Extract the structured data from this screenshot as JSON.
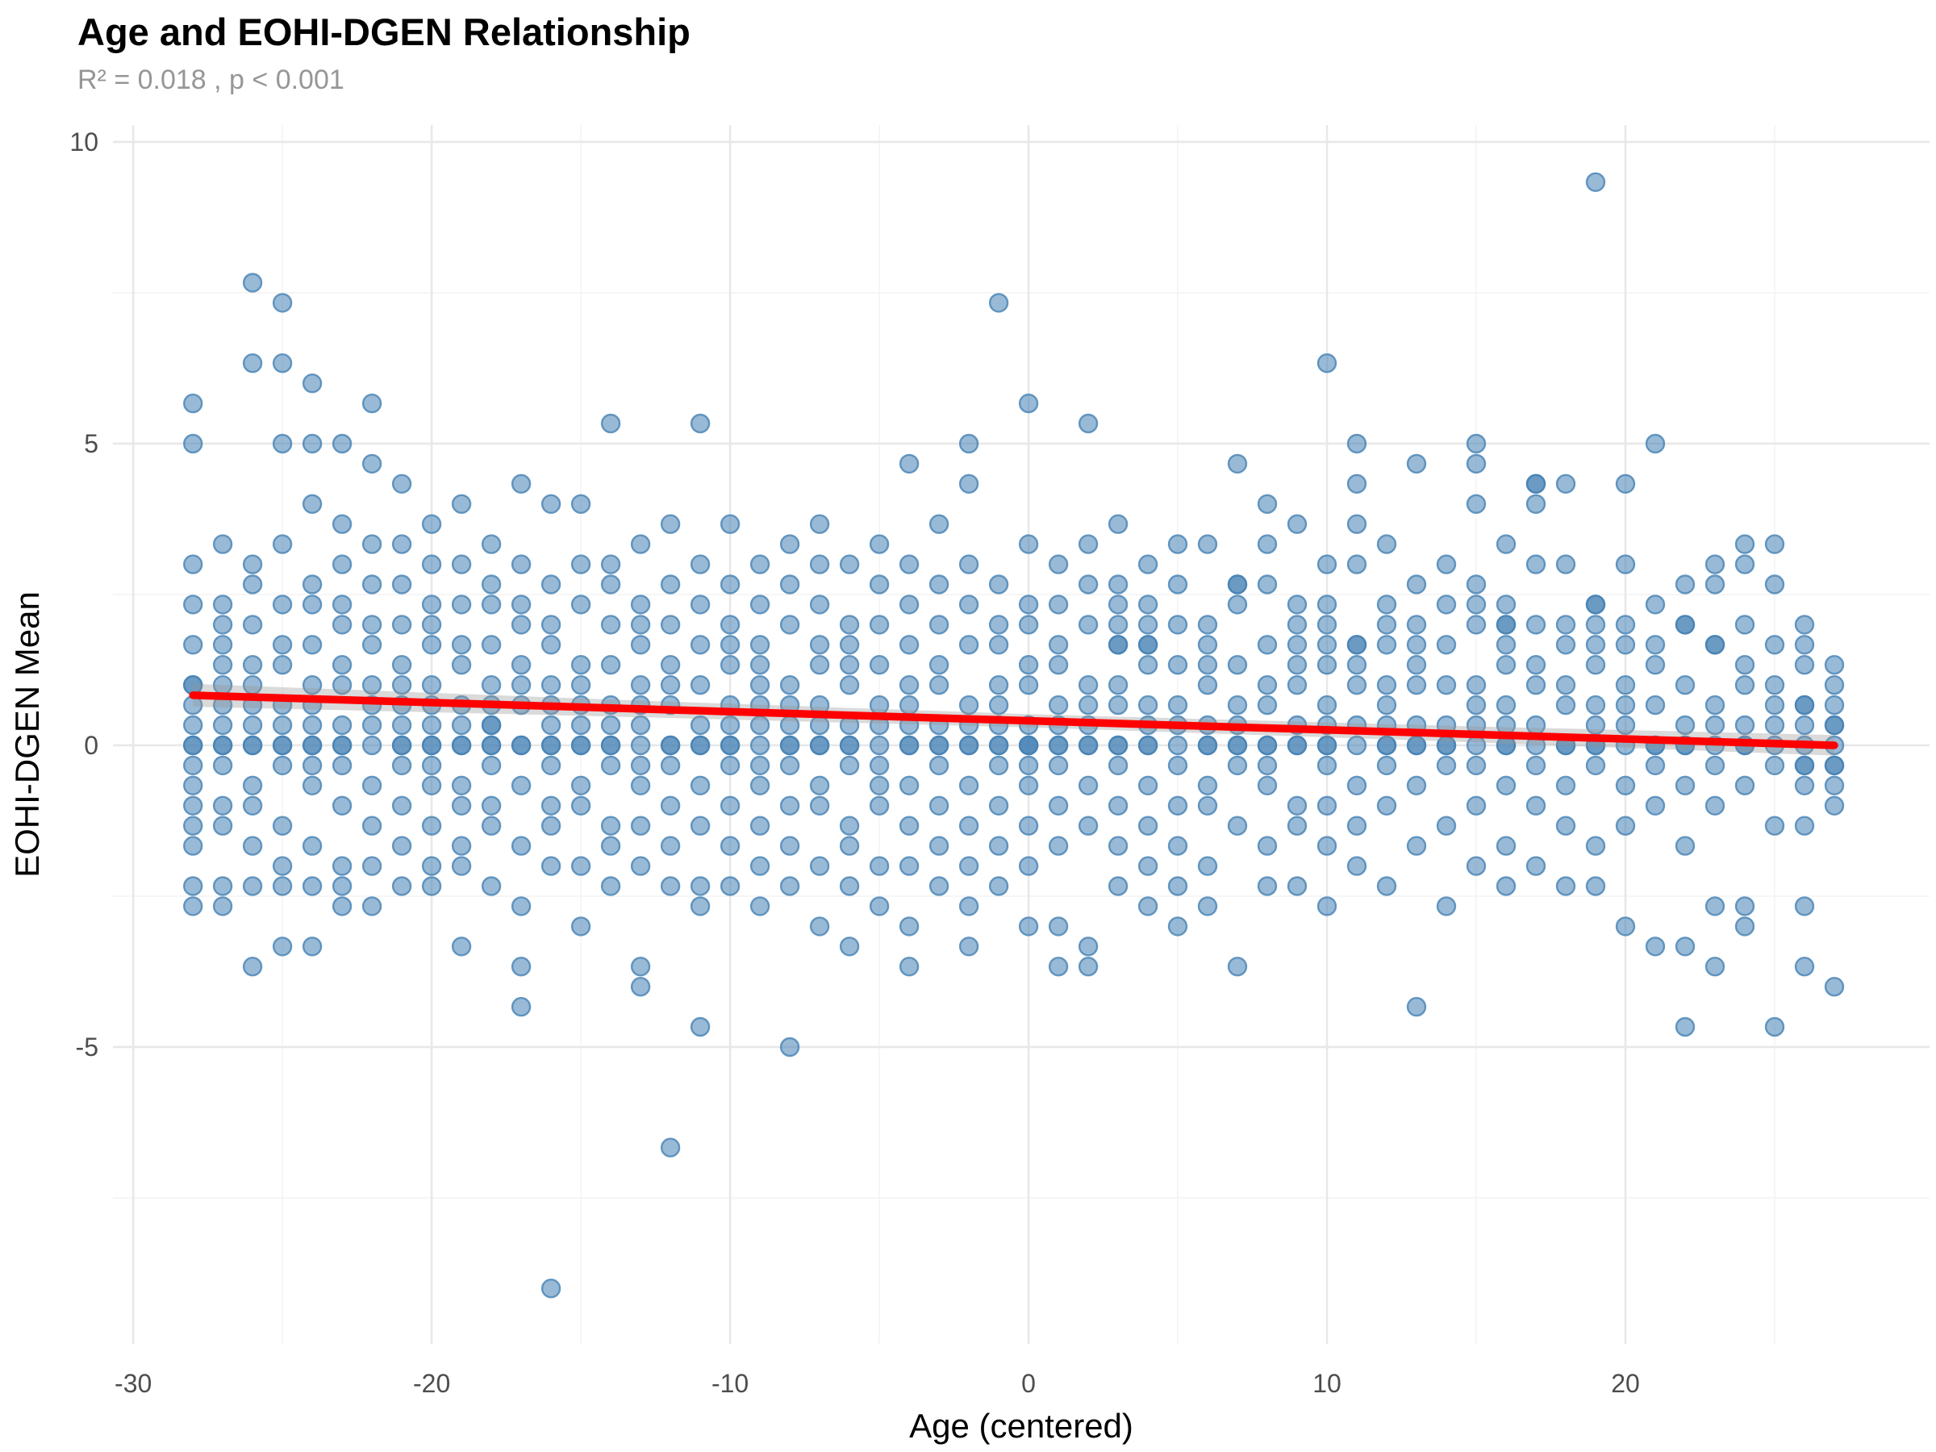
{
  "page": {
    "title": "Age and EOHI-DGEN Relationship",
    "subtitle": "R² = 0.018 , p < 0.001"
  },
  "chart_data": {
    "type": "scatter",
    "title": "Age and EOHI-DGEN Relationship",
    "subtitle": "R² = 0.018 , p < 0.001",
    "xlabel": "Age (centered)",
    "ylabel": "EOHI-DGEN Mean",
    "x_ticks": [
      -30,
      -20,
      -10,
      0,
      10,
      20
    ],
    "x_minor_ticks": [
      -25,
      -15,
      -5,
      5,
      15,
      25
    ],
    "y_ticks": [
      -5,
      0,
      5,
      10
    ],
    "y_minor_ticks": [
      -7.5,
      -2.5,
      2.5,
      7.5
    ],
    "x_domain": [
      -30.68,
      30.19
    ],
    "y_domain": [
      -9.92,
      10.28
    ],
    "grid": true,
    "legend": "none",
    "point_y_resolution": 0.3333,
    "note_y3": "y values are thirds: y = y3 / 3; repeated y3 values = overlapping points (darker)",
    "columns": [
      {
        "x": -28,
        "y3": [
          17,
          15,
          9,
          7,
          5,
          3,
          3,
          2,
          1,
          0,
          0,
          -1,
          -2,
          -3,
          -4,
          -5,
          -7,
          -8
        ]
      },
      {
        "x": -27,
        "y3": [
          10,
          7,
          6,
          5,
          4,
          3,
          2,
          1,
          0,
          0,
          -1,
          -3,
          -4,
          -7,
          -8
        ]
      },
      {
        "x": -26,
        "y3": [
          23,
          19,
          9,
          8,
          6,
          4,
          3,
          2,
          1,
          0,
          0,
          -2,
          -3,
          -5,
          -7,
          -11
        ]
      },
      {
        "x": -25,
        "y3": [
          22,
          19,
          15,
          10,
          7,
          5,
          4,
          2,
          1,
          0,
          0,
          -1,
          -4,
          -6,
          -7,
          -10
        ]
      },
      {
        "x": -24,
        "y3": [
          18,
          15,
          12,
          8,
          7,
          5,
          3,
          2,
          1,
          0,
          0,
          -1,
          -2,
          -5,
          -7,
          -10
        ]
      },
      {
        "x": -23,
        "y3": [
          15,
          11,
          9,
          7,
          6,
          4,
          3,
          1,
          0,
          0,
          -1,
          -3,
          -6,
          -7,
          -8
        ]
      },
      {
        "x": -22,
        "y3": [
          17,
          14,
          10,
          8,
          6,
          5,
          3,
          2,
          1,
          0,
          -2,
          -4,
          -6,
          -8
        ]
      },
      {
        "x": -21,
        "y3": [
          13,
          10,
          8,
          6,
          4,
          3,
          2,
          1,
          0,
          0,
          -1,
          -3,
          -5,
          -7
        ]
      },
      {
        "x": -20,
        "y3": [
          11,
          9,
          7,
          6,
          5,
          3,
          2,
          1,
          0,
          0,
          -1,
          -2,
          -4,
          -6,
          -7
        ]
      },
      {
        "x": -19,
        "y3": [
          12,
          9,
          7,
          5,
          4,
          2,
          1,
          0,
          0,
          -2,
          -3,
          -5,
          -6,
          -10
        ]
      },
      {
        "x": -18,
        "y3": [
          10,
          8,
          7,
          5,
          3,
          2,
          1,
          1,
          0,
          0,
          -1,
          -3,
          -4,
          -7
        ]
      },
      {
        "x": -17,
        "y3": [
          13,
          9,
          7,
          6,
          4,
          3,
          2,
          0,
          0,
          -2,
          -5,
          -8,
          -11,
          -13
        ]
      },
      {
        "x": -16,
        "y3": [
          12,
          8,
          6,
          5,
          3,
          2,
          1,
          0,
          0,
          -1,
          -3,
          -4,
          -6,
          -27
        ]
      },
      {
        "x": -15,
        "y3": [
          12,
          9,
          7,
          4,
          3,
          2,
          1,
          0,
          0,
          -2,
          -3,
          -6,
          -9
        ]
      },
      {
        "x": -14,
        "y3": [
          16,
          9,
          8,
          6,
          4,
          2,
          1,
          0,
          0,
          -1,
          -4,
          -5,
          -7
        ]
      },
      {
        "x": -13,
        "y3": [
          10,
          7,
          6,
          5,
          3,
          2,
          1,
          0,
          -1,
          -2,
          -4,
          -6,
          -11,
          -12
        ]
      },
      {
        "x": -12,
        "y3": [
          11,
          8,
          6,
          4,
          3,
          2,
          0,
          0,
          -1,
          -3,
          -5,
          -7,
          -20
        ]
      },
      {
        "x": -11,
        "y3": [
          16,
          9,
          7,
          5,
          3,
          1,
          0,
          0,
          -2,
          -4,
          -7,
          -8,
          -14
        ]
      },
      {
        "x": -10,
        "y3": [
          11,
          8,
          6,
          5,
          4,
          2,
          1,
          0,
          0,
          -1,
          -3,
          -5,
          -7
        ]
      },
      {
        "x": -9,
        "y3": [
          9,
          7,
          5,
          4,
          3,
          2,
          1,
          0,
          -1,
          -2,
          -4,
          -6,
          -8
        ]
      },
      {
        "x": -8,
        "y3": [
          10,
          8,
          6,
          3,
          2,
          1,
          0,
          0,
          -1,
          -3,
          -5,
          -7,
          -15
        ]
      },
      {
        "x": -7,
        "y3": [
          11,
          9,
          7,
          5,
          4,
          2,
          1,
          0,
          0,
          -2,
          -3,
          -6,
          -9
        ]
      },
      {
        "x": -6,
        "y3": [
          9,
          6,
          5,
          4,
          3,
          1,
          0,
          0,
          -1,
          -4,
          -5,
          -7,
          -10
        ]
      },
      {
        "x": -5,
        "y3": [
          10,
          8,
          6,
          4,
          2,
          1,
          0,
          -1,
          -2,
          -3,
          -6,
          -8
        ]
      },
      {
        "x": -4,
        "y3": [
          14,
          9,
          7,
          5,
          3,
          2,
          1,
          0,
          0,
          -2,
          -4,
          -6,
          -9,
          -11
        ]
      },
      {
        "x": -3,
        "y3": [
          11,
          8,
          6,
          4,
          3,
          1,
          0,
          0,
          -1,
          -3,
          -5,
          -7
        ]
      },
      {
        "x": -2,
        "y3": [
          15,
          13,
          9,
          7,
          5,
          2,
          1,
          0,
          0,
          -2,
          -4,
          -6,
          -8,
          -10
        ]
      },
      {
        "x": -1,
        "y3": [
          22,
          8,
          6,
          5,
          3,
          2,
          1,
          0,
          0,
          -1,
          -3,
          -5,
          -7
        ]
      },
      {
        "x": 0,
        "y3": [
          17,
          10,
          7,
          6,
          4,
          3,
          1,
          0,
          0,
          0,
          -1,
          -2,
          -4,
          -6,
          -9
        ]
      },
      {
        "x": 1,
        "y3": [
          9,
          7,
          5,
          4,
          2,
          1,
          0,
          0,
          -1,
          -3,
          -5,
          -9,
          -11
        ]
      },
      {
        "x": 2,
        "y3": [
          16,
          10,
          8,
          6,
          3,
          2,
          1,
          0,
          0,
          -2,
          -4,
          -10,
          -11
        ]
      },
      {
        "x": 3,
        "y3": [
          11,
          8,
          7,
          6,
          5,
          5,
          3,
          2,
          0,
          0,
          -1,
          -3,
          -5,
          -7
        ]
      },
      {
        "x": 4,
        "y3": [
          9,
          7,
          6,
          5,
          5,
          4,
          2,
          1,
          0,
          0,
          -2,
          -4,
          -6,
          -8
        ]
      },
      {
        "x": 5,
        "y3": [
          10,
          8,
          6,
          4,
          2,
          1,
          0,
          -1,
          -3,
          -5,
          -7,
          -9
        ]
      },
      {
        "x": 6,
        "y3": [
          10,
          6,
          5,
          4,
          3,
          1,
          0,
          0,
          -2,
          -3,
          -6,
          -8
        ]
      },
      {
        "x": 7,
        "y3": [
          14,
          8,
          8,
          7,
          4,
          2,
          1,
          0,
          0,
          -1,
          -4,
          -11
        ]
      },
      {
        "x": 8,
        "y3": [
          12,
          10,
          8,
          5,
          3,
          2,
          0,
          0,
          -1,
          -2,
          -5,
          -7
        ]
      },
      {
        "x": 9,
        "y3": [
          11,
          7,
          6,
          5,
          4,
          3,
          1,
          0,
          0,
          -3,
          -4,
          -7
        ]
      },
      {
        "x": 10,
        "y3": [
          19,
          9,
          7,
          6,
          5,
          4,
          2,
          1,
          0,
          0,
          -1,
          -3,
          -5,
          -8
        ]
      },
      {
        "x": 11,
        "y3": [
          15,
          13,
          11,
          9,
          5,
          5,
          4,
          3,
          1,
          0,
          -2,
          -4,
          -6
        ]
      },
      {
        "x": 12,
        "y3": [
          10,
          7,
          6,
          5,
          3,
          2,
          1,
          0,
          0,
          -1,
          -3,
          -7
        ]
      },
      {
        "x": 13,
        "y3": [
          14,
          8,
          6,
          5,
          4,
          3,
          1,
          0,
          0,
          -2,
          -5,
          -13
        ]
      },
      {
        "x": 14,
        "y3": [
          9,
          7,
          5,
          3,
          1,
          0,
          0,
          -1,
          -4,
          -8
        ]
      },
      {
        "x": 15,
        "y3": [
          15,
          14,
          12,
          8,
          7,
          6,
          3,
          2,
          1,
          0,
          -1,
          -3,
          -6
        ]
      },
      {
        "x": 16,
        "y3": [
          10,
          7,
          6,
          6,
          5,
          4,
          2,
          1,
          0,
          0,
          -2,
          -5,
          -7
        ]
      },
      {
        "x": 17,
        "y3": [
          13,
          13,
          12,
          9,
          6,
          4,
          3,
          1,
          0,
          -1,
          -3,
          -6
        ]
      },
      {
        "x": 18,
        "y3": [
          13,
          9,
          6,
          5,
          3,
          2,
          0,
          0,
          -2,
          -4,
          -7
        ]
      },
      {
        "x": 19,
        "y3": [
          28,
          7,
          7,
          6,
          5,
          4,
          2,
          1,
          0,
          0,
          -1,
          -5,
          -7
        ]
      },
      {
        "x": 20,
        "y3": [
          13,
          9,
          6,
          5,
          3,
          2,
          1,
          0,
          -2,
          -4,
          -9
        ]
      },
      {
        "x": 21,
        "y3": [
          15,
          7,
          5,
          4,
          2,
          0,
          0,
          -1,
          -3,
          -10
        ]
      },
      {
        "x": 22,
        "y3": [
          8,
          6,
          6,
          3,
          1,
          0,
          0,
          -2,
          -5,
          -10,
          -14
        ]
      },
      {
        "x": 23,
        "y3": [
          9,
          8,
          5,
          5,
          2,
          1,
          0,
          -1,
          -3,
          -8,
          -11
        ]
      },
      {
        "x": 24,
        "y3": [
          10,
          9,
          6,
          4,
          3,
          1,
          0,
          0,
          -2,
          -8,
          -9
        ]
      },
      {
        "x": 25,
        "y3": [
          10,
          8,
          5,
          3,
          2,
          1,
          0,
          -1,
          -4,
          -14
        ]
      },
      {
        "x": 26,
        "y3": [
          6,
          5,
          4,
          2,
          2,
          1,
          0,
          -1,
          -1,
          -2,
          -4,
          -8,
          -11
        ]
      },
      {
        "x": 27,
        "y3": [
          4,
          3,
          2,
          1,
          1,
          0,
          -1,
          -1,
          -2,
          -3,
          -12
        ]
      }
    ],
    "regression": {
      "x1": -28,
      "y1": 0.83,
      "x2": 27,
      "y2": 0.0,
      "r_squared": 0.018,
      "p_value": "< 0.001"
    },
    "ribbon": {
      "x": [
        -28,
        -14,
        0,
        14,
        27
      ],
      "half_width": [
        0.19,
        0.14,
        0.11,
        0.13,
        0.17
      ]
    },
    "colors": {
      "point_base": "#4682B4",
      "point_fill_alpha": 0.55,
      "point_stroke_alpha": 0.8,
      "regression_line": "#FF0000",
      "ribbon": "rgba(150,150,150,0.35)",
      "grid_major": "#E8E8E8",
      "grid_minor": "#F4F4F4",
      "tick_label": "#4D4D4D",
      "axis_title": "#000000",
      "subtitle": "#969696",
      "background": "#FFFFFF"
    }
  }
}
